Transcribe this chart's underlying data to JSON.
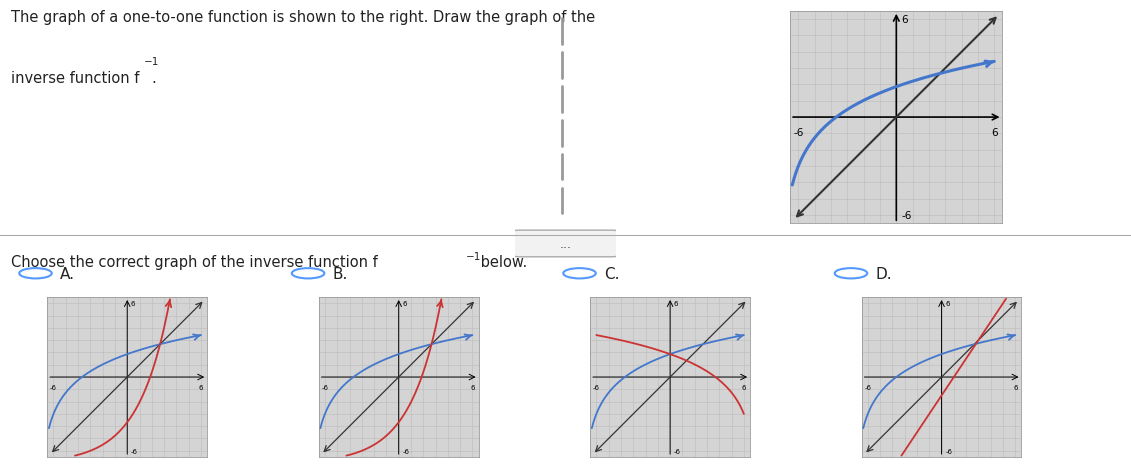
{
  "bg_color": "#ffffff",
  "title_line1": "The graph of a one-to-one function is shown to the right. Draw the graph of the",
  "title_line2": "inverse function f",
  "choose_line": "Choose the correct graph of the inverse function f",
  "options": [
    "A.",
    "B.",
    "C.",
    "D."
  ],
  "blue_color": "#4477cc",
  "red_color": "#cc3333",
  "black_color": "#222222",
  "diag_color": "#333333",
  "grid_color": "#bbbbbb",
  "grid_bg": "#d4d4d4",
  "option_circle_color": "#5599ff",
  "divider_color": "#aaaaaa",
  "main_graph_xlim": [
    -6,
    6
  ],
  "main_graph_ylim": [
    -6,
    6
  ],
  "small_graph_xlim": [
    -6,
    6
  ],
  "small_graph_ylim": [
    -6,
    6
  ],
  "log_a": 2.5,
  "log_b": 7.0,
  "log_c": 3.0
}
